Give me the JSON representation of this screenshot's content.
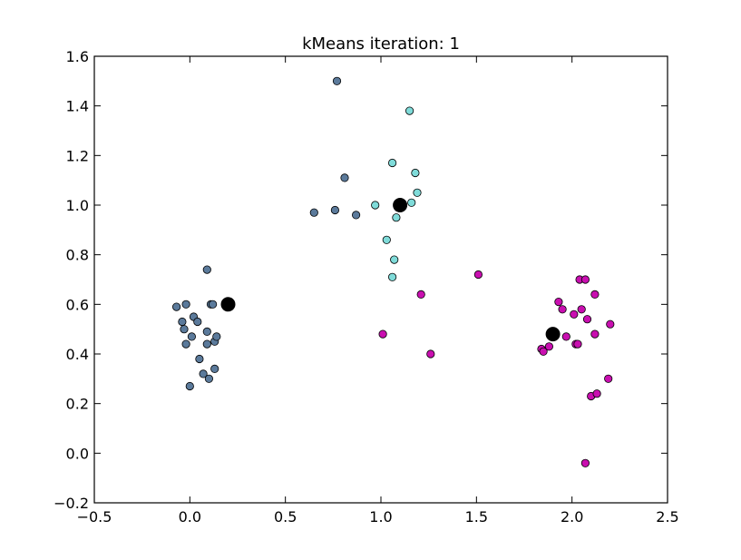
{
  "chart_data": {
    "type": "scatter",
    "title": "kMeans iteration: 1",
    "xlabel": "",
    "ylabel": "",
    "xlim": [
      -0.5,
      2.5
    ],
    "ylim": [
      -0.2,
      1.6
    ],
    "xticks": [
      -0.5,
      0.0,
      0.5,
      1.0,
      1.5,
      2.0,
      2.5
    ],
    "yticks": [
      -0.2,
      0.0,
      0.2,
      0.4,
      0.6,
      0.8,
      1.0,
      1.2,
      1.4,
      1.6
    ],
    "xtick_labels": [
      "−0.5",
      "0.0",
      "0.5",
      "1.0",
      "1.5",
      "2.0",
      "2.5"
    ],
    "ytick_labels": [
      "−0.2",
      "0.0",
      "0.2",
      "0.4",
      "0.6",
      "0.8",
      "1.0",
      "1.2",
      "1.4",
      "1.6"
    ],
    "grid": false,
    "series": [
      {
        "color": "#5b7a9b",
        "x": [
          -0.07,
          -0.04,
          -0.03,
          -0.02,
          -0.02,
          0.0,
          0.01,
          0.02,
          0.04,
          0.05,
          0.07,
          0.09,
          0.09,
          0.09,
          0.1,
          0.11,
          0.12,
          0.13,
          0.14,
          0.13,
          0.65,
          0.76,
          0.77,
          0.81,
          0.87
        ],
        "y": [
          0.59,
          0.53,
          0.5,
          0.6,
          0.44,
          0.27,
          0.47,
          0.55,
          0.53,
          0.38,
          0.32,
          0.74,
          0.49,
          0.44,
          0.3,
          0.6,
          0.6,
          0.45,
          0.47,
          0.34,
          0.97,
          0.98,
          1.5,
          1.11,
          0.96
        ]
      },
      {
        "color": "#7fdbd9",
        "x": [
          0.97,
          1.03,
          1.06,
          1.06,
          1.07,
          1.08,
          1.09,
          1.15,
          1.16,
          1.18,
          1.19
        ],
        "y": [
          1.0,
          0.86,
          1.17,
          0.71,
          0.78,
          0.95,
          0.99,
          1.38,
          1.01,
          1.13,
          1.05
        ]
      },
      {
        "color": "#c90fb0",
        "x": [
          1.01,
          1.21,
          1.26,
          1.51,
          1.84,
          1.85,
          1.88,
          1.93,
          1.95,
          1.97,
          2.01,
          2.02,
          2.03,
          2.04,
          2.05,
          2.07,
          2.07,
          2.08,
          2.1,
          2.12,
          2.12,
          2.13,
          2.19,
          2.2
        ],
        "y": [
          0.48,
          0.64,
          0.4,
          0.72,
          0.42,
          0.41,
          0.43,
          0.61,
          0.58,
          0.47,
          0.56,
          0.44,
          0.44,
          0.7,
          0.58,
          0.7,
          -0.04,
          0.54,
          0.23,
          0.64,
          0.48,
          0.24,
          0.3,
          0.52
        ]
      }
    ],
    "centroids": {
      "color": "#000000",
      "x": [
        0.2,
        1.1,
        1.9
      ],
      "y": [
        0.6,
        1.0,
        0.48
      ]
    }
  }
}
